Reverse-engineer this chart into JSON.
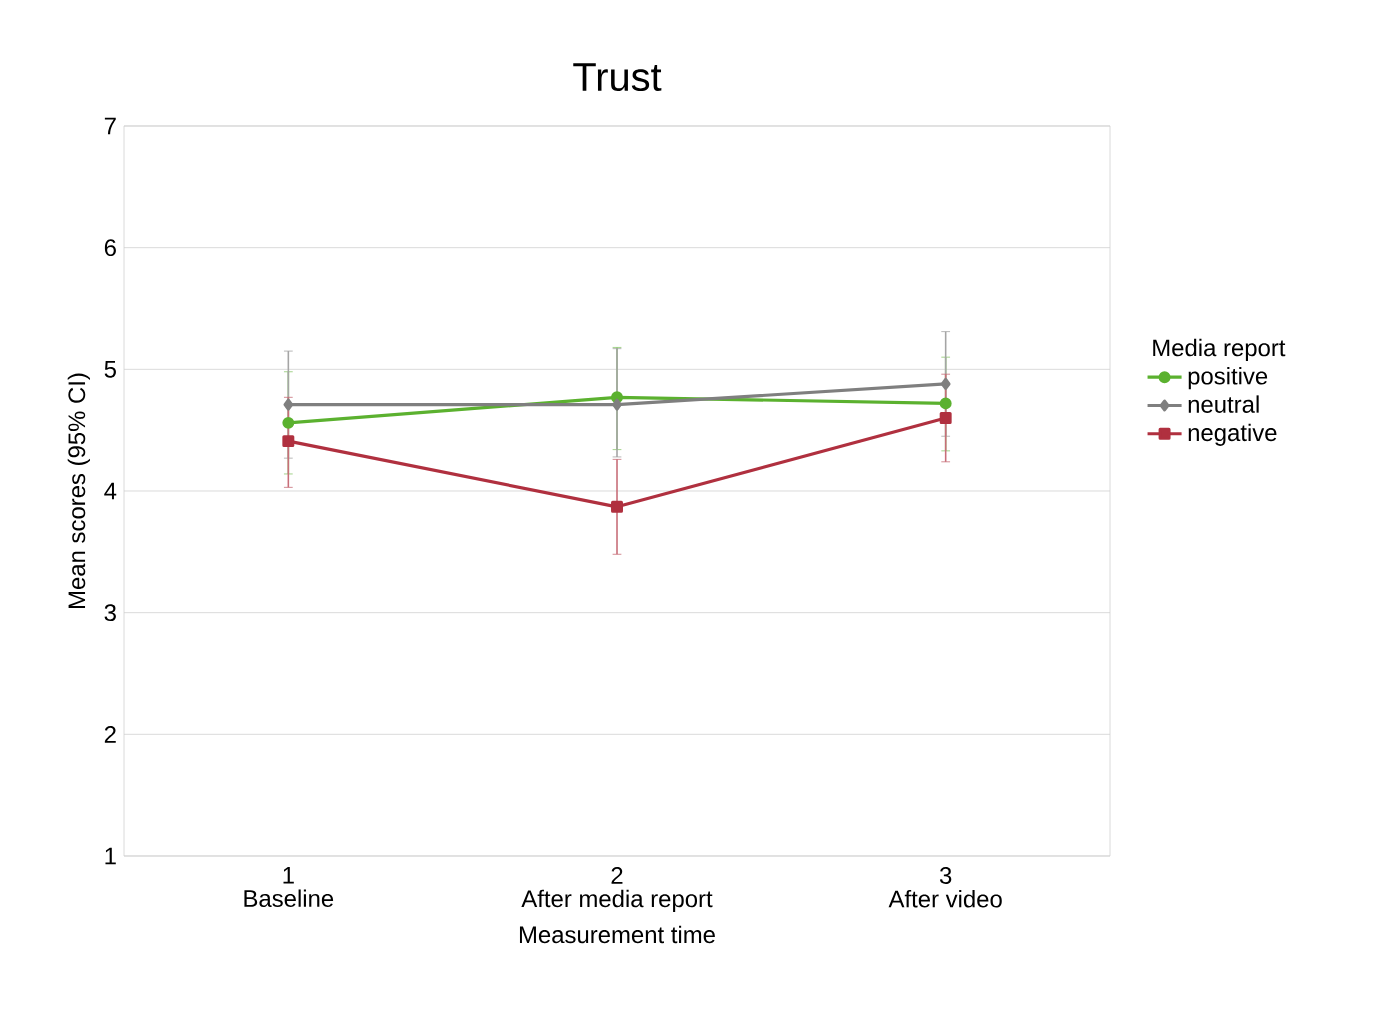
{
  "chart_data": {
    "type": "line",
    "title": "Trust",
    "xlabel": "Measurement time",
    "ylabel": "Mean scores (95% CI)",
    "legend_title": "Media report",
    "x": [
      1,
      2,
      3
    ],
    "xlim": [
      0.5,
      3.5
    ],
    "xticks": [
      1,
      2,
      3
    ],
    "ylim": [
      1,
      7
    ],
    "yticks": [
      1,
      2,
      3,
      4,
      5,
      6,
      7
    ],
    "annotations": [
      "Baseline",
      "After media report",
      "After video"
    ],
    "grid": "y",
    "legend": "right",
    "line_style": "solid",
    "series": [
      {
        "name": "positive",
        "color": "#5bb12f",
        "marker": "circle",
        "values": [
          4.56,
          4.77,
          4.72
        ],
        "errors": [
          [
            4.14,
            4.98
          ],
          [
            4.34,
            5.18
          ],
          [
            4.33,
            5.1
          ]
        ]
      },
      {
        "name": "neutral",
        "color": "#7f7f7f",
        "marker": "diamond",
        "values": [
          4.71,
          4.71,
          4.88
        ],
        "errors": [
          [
            4.27,
            5.15
          ],
          [
            4.28,
            5.17
          ],
          [
            4.45,
            5.31
          ]
        ]
      },
      {
        "name": "negative",
        "color": "#b0303f",
        "marker": "square",
        "values": [
          4.41,
          3.87,
          4.6
        ],
        "errors": [
          [
            4.03,
            4.77
          ],
          [
            3.48,
            4.26
          ],
          [
            4.24,
            4.96
          ]
        ]
      }
    ]
  }
}
